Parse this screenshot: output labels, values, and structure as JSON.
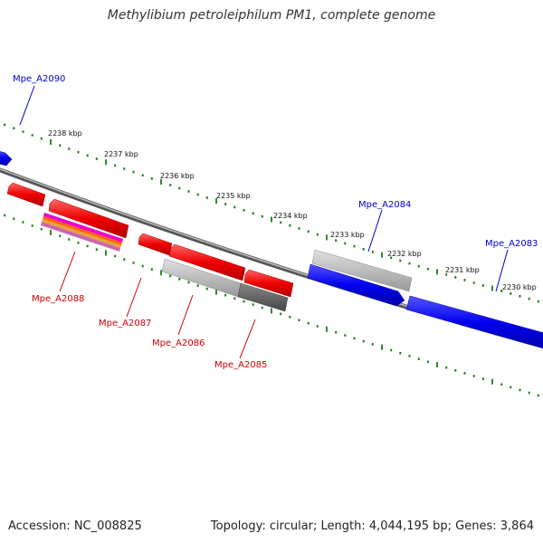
{
  "title": "Methylibium petroleiphilum PM1, complete genome",
  "footer": {
    "accession": "Accession: NC_008825",
    "summary": "Topology: circular; Length: 4,044,195 bp; Genes: 3,864"
  },
  "colors": {
    "forward_gene": "#0000ee",
    "reverse_gene": "#ee0000",
    "backbone": "#888888",
    "tick": "#1a7a1a",
    "pseudo_light": "#bbbbbb",
    "pseudo_dark": "#666666",
    "label_forward": "#0000cc",
    "label_reverse": "#cc0000"
  },
  "ruler": {
    "unit_labels": [
      "2238 kbp",
      "2237 kbp",
      "2236 kbp",
      "2235 kbp",
      "2234 kbp",
      "2233 kbp",
      "2232 kbp",
      "2231 kbp",
      "2230 kbp"
    ]
  },
  "genes": {
    "forward": [
      {
        "name": "Mpe_A2090"
      },
      {
        "name": "Mpe_A2084"
      },
      {
        "name": "Mpe_A2083"
      }
    ],
    "reverse": [
      {
        "name": "Mpe_A2088"
      },
      {
        "name": "Mpe_A2087"
      },
      {
        "name": "Mpe_A2086"
      },
      {
        "name": "Mpe_A2085"
      }
    ]
  }
}
